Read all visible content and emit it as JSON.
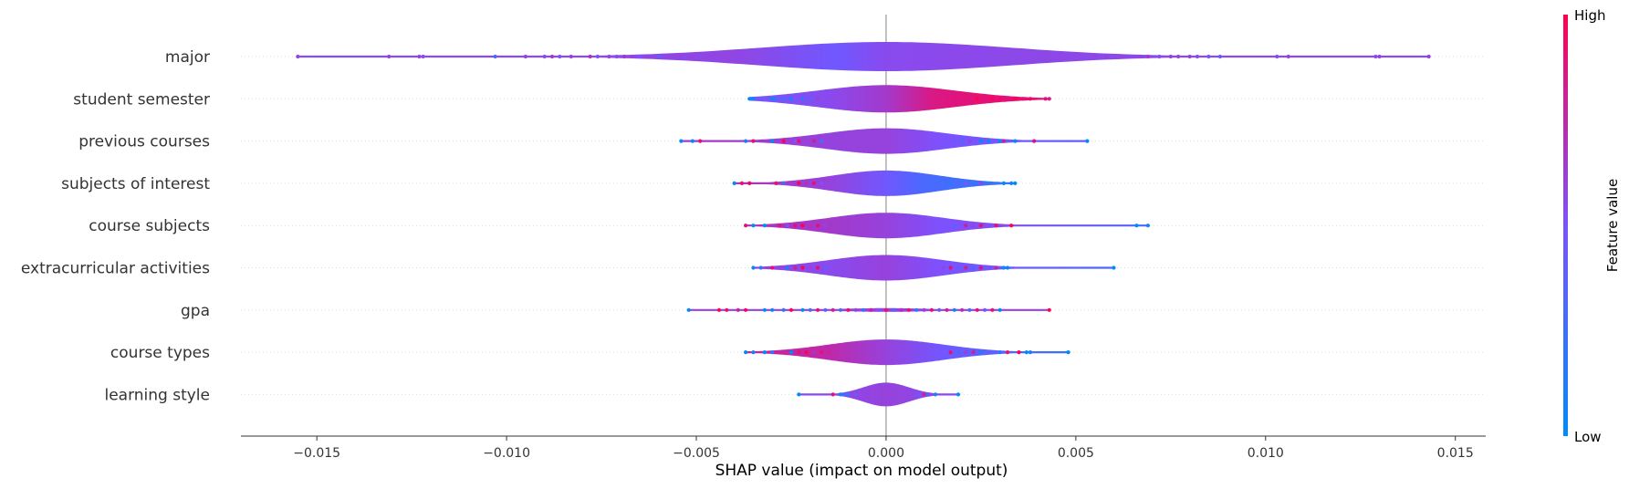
{
  "chart_data": {
    "type": "violin",
    "xlabel": "SHAP value (impact on model output)",
    "xlim": [
      -0.017,
      0.0158
    ],
    "xticks": [
      -0.015,
      -0.01,
      -0.005,
      0.0,
      0.005,
      0.01,
      0.015
    ],
    "xtick_labels": [
      "−0.015",
      "−0.010",
      "−0.005",
      "0.000",
      "0.005",
      "0.010",
      "0.015"
    ],
    "colorbar": {
      "title": "Feature value",
      "high_label": "High",
      "low_label": "Low",
      "high_color": "#ff0052",
      "low_color": "#008bfb"
    },
    "features": [
      {
        "name": "major",
        "range": [
          -0.0155,
          0.0143
        ],
        "spread": 0.0033,
        "maxwidth": 16,
        "color_mix": [
          [
            -0.016,
            0.52
          ],
          [
            -0.004,
            0.58
          ],
          [
            -0.0013,
            0.45
          ],
          [
            0.0,
            0.55
          ],
          [
            0.004,
            0.57
          ],
          [
            0.016,
            0.55
          ]
        ],
        "points": [
          [
            -0.0155,
            0.6
          ],
          [
            -0.0131,
            0.6
          ],
          [
            -0.0123,
            0.6
          ],
          [
            -0.0122,
            0.55
          ],
          [
            -0.0103,
            0.3
          ],
          [
            -0.0095,
            0.6
          ],
          [
            -0.009,
            0.55
          ],
          [
            -0.0088,
            0.65
          ],
          [
            -0.0086,
            0.5
          ],
          [
            -0.0083,
            0.6
          ],
          [
            -0.0078,
            0.7
          ],
          [
            -0.0076,
            0.5
          ],
          [
            -0.0073,
            0.6
          ],
          [
            -0.0071,
            0.55
          ],
          [
            -0.0069,
            0.65
          ],
          [
            -0.0067,
            0.6
          ],
          [
            -0.0065,
            0.5
          ],
          [
            -0.0063,
            0.6
          ],
          [
            -0.006,
            0.4
          ],
          [
            -0.0059,
            0.55
          ],
          [
            -0.0057,
            0.6
          ],
          [
            -0.0055,
            0.6
          ],
          [
            -0.0053,
            0.55
          ],
          [
            -0.0051,
            0.6
          ],
          [
            -0.0049,
            0.55
          ],
          [
            -0.0047,
            0.6
          ],
          [
            0.0053,
            0.55
          ],
          [
            0.0055,
            0.6
          ],
          [
            0.0058,
            0.6
          ],
          [
            0.006,
            0.55
          ],
          [
            0.0062,
            0.6
          ],
          [
            0.0067,
            0.6
          ],
          [
            0.0069,
            0.65
          ],
          [
            0.0072,
            0.55
          ],
          [
            0.0075,
            0.6
          ],
          [
            0.0077,
            0.6
          ],
          [
            0.008,
            0.6
          ],
          [
            0.0082,
            0.55
          ],
          [
            0.0085,
            0.45
          ],
          [
            0.0088,
            0.4
          ],
          [
            0.0103,
            0.55
          ],
          [
            0.0106,
            0.6
          ],
          [
            0.0129,
            0.55
          ],
          [
            0.013,
            0.6
          ],
          [
            0.0143,
            0.6
          ]
        ]
      },
      {
        "name": "student semester",
        "range": [
          -0.0036,
          0.0043
        ],
        "spread": 0.0018,
        "maxwidth": 15,
        "color_mix": [
          [
            -0.004,
            0.45
          ],
          [
            -0.0015,
            0.55
          ],
          [
            0.0,
            0.65
          ],
          [
            0.0012,
            0.85
          ],
          [
            0.0025,
            0.9
          ],
          [
            0.0045,
            0.9
          ]
        ],
        "points": [
          [
            -0.0036,
            0.0
          ],
          [
            -0.0035,
            0.1
          ],
          [
            -0.003,
            0.1
          ],
          [
            -0.0029,
            0.2
          ],
          [
            -0.0027,
            0.3
          ],
          [
            -0.0025,
            0.1
          ],
          [
            -0.0024,
            0.5
          ],
          [
            -0.0022,
            0.2
          ],
          [
            -0.002,
            0.4
          ],
          [
            -0.0018,
            0.6
          ],
          [
            0.0022,
            0.9
          ],
          [
            0.0024,
            1.0
          ],
          [
            0.0026,
            0.9
          ],
          [
            0.0028,
            1.0
          ],
          [
            0.003,
            0.95
          ],
          [
            0.0032,
            0.9
          ],
          [
            0.0034,
            1.0
          ],
          [
            0.0036,
            0.9
          ],
          [
            0.0038,
            0.95
          ],
          [
            0.0042,
            0.9
          ],
          [
            0.0043,
            0.85
          ]
        ]
      },
      {
        "name": "previous courses",
        "range": [
          -0.0054,
          0.0053
        ],
        "spread": 0.0016,
        "maxwidth": 14,
        "color_mix": [
          [
            -0.004,
            0.65
          ],
          [
            -0.0015,
            0.6
          ],
          [
            0.0,
            0.6
          ],
          [
            0.0015,
            0.5
          ],
          [
            0.003,
            0.45
          ],
          [
            0.006,
            0.4
          ]
        ],
        "points": [
          [
            -0.0054,
            0.0
          ],
          [
            -0.0051,
            0.0
          ],
          [
            -0.0049,
            0.9
          ],
          [
            -0.0037,
            0.1
          ],
          [
            -0.0035,
            0.9
          ],
          [
            -0.003,
            0.0
          ],
          [
            -0.0027,
            1.0
          ],
          [
            -0.0024,
            0.5
          ],
          [
            -0.0023,
            0.9
          ],
          [
            -0.0021,
            0.6
          ],
          [
            -0.0019,
            0.8
          ],
          [
            -0.0017,
            0.3
          ],
          [
            0.0016,
            0.5
          ],
          [
            0.0018,
            0.4
          ],
          [
            0.002,
            0.3
          ],
          [
            0.0022,
            0.6
          ],
          [
            0.0024,
            0.5
          ],
          [
            0.0025,
            0.0
          ],
          [
            0.0027,
            0.1
          ],
          [
            0.003,
            0.0
          ],
          [
            0.0031,
            0.8
          ],
          [
            0.0034,
            0.0
          ],
          [
            0.0039,
            0.9
          ],
          [
            0.0053,
            0.0
          ]
        ]
      },
      {
        "name": "subjects of interest",
        "range": [
          -0.004,
          0.0034
        ],
        "spread": 0.0014,
        "maxwidth": 14,
        "color_mix": [
          [
            -0.004,
            0.7
          ],
          [
            -0.0015,
            0.6
          ],
          [
            0.0,
            0.45
          ],
          [
            0.001,
            0.3
          ],
          [
            0.002,
            0.25
          ],
          [
            0.004,
            0.2
          ]
        ],
        "points": [
          [
            -0.004,
            0.0
          ],
          [
            -0.0038,
            0.9
          ],
          [
            -0.0036,
            1.0
          ],
          [
            -0.0029,
            0.9
          ],
          [
            -0.0027,
            0.3
          ],
          [
            -0.0023,
            1.0
          ],
          [
            -0.0021,
            0.7
          ],
          [
            -0.0019,
            0.9
          ],
          [
            -0.0017,
            0.5
          ],
          [
            -0.0015,
            0.6
          ],
          [
            0.0015,
            0.3
          ],
          [
            0.0017,
            0.2
          ],
          [
            0.0019,
            0.4
          ],
          [
            0.0021,
            0.5
          ],
          [
            0.0023,
            0.3
          ],
          [
            0.0025,
            0.6
          ],
          [
            0.0031,
            0.0
          ],
          [
            0.0033,
            0.1
          ],
          [
            0.0034,
            0.0
          ]
        ]
      },
      {
        "name": "course subjects",
        "range": [
          -0.0037,
          0.0069
        ],
        "spread": 0.0015,
        "maxwidth": 14,
        "color_mix": [
          [
            -0.004,
            0.7
          ],
          [
            -0.0015,
            0.65
          ],
          [
            0.0,
            0.6
          ],
          [
            0.0015,
            0.5
          ],
          [
            0.003,
            0.55
          ],
          [
            0.007,
            0.3
          ]
        ],
        "points": [
          [
            -0.0037,
            0.9
          ],
          [
            -0.0035,
            0.0
          ],
          [
            -0.0032,
            0.0
          ],
          [
            -0.0028,
            0.9
          ],
          [
            -0.0026,
            0.5
          ],
          [
            -0.0024,
            0.9
          ],
          [
            -0.0022,
            1.0
          ],
          [
            -0.002,
            0.7
          ],
          [
            -0.0018,
            0.9
          ],
          [
            -0.0016,
            0.6
          ],
          [
            0.0016,
            0.5
          ],
          [
            0.0018,
            0.3
          ],
          [
            0.0021,
            0.8
          ],
          [
            0.0023,
            0.6
          ],
          [
            0.0025,
            0.9
          ],
          [
            0.0027,
            0.5
          ],
          [
            0.0029,
            0.9
          ],
          [
            0.0033,
            1.0
          ],
          [
            0.0066,
            0.0
          ],
          [
            0.0069,
            0.1
          ]
        ]
      },
      {
        "name": "extracurricular activities",
        "range": [
          -0.0035,
          0.006
        ],
        "spread": 0.0015,
        "maxwidth": 14,
        "color_mix": [
          [
            -0.004,
            0.6
          ],
          [
            -0.0015,
            0.55
          ],
          [
            0.0,
            0.6
          ],
          [
            0.0015,
            0.5
          ],
          [
            0.003,
            0.45
          ],
          [
            0.006,
            0.3
          ]
        ],
        "points": [
          [
            -0.0035,
            0.0
          ],
          [
            -0.0033,
            0.2
          ],
          [
            -0.003,
            0.9
          ],
          [
            -0.0026,
            0.1
          ],
          [
            -0.0024,
            0.8
          ],
          [
            -0.0022,
            1.0
          ],
          [
            -0.002,
            0.6
          ],
          [
            -0.0018,
            0.9
          ],
          [
            -0.0016,
            0.4
          ],
          [
            0.0015,
            0.6
          ],
          [
            0.0017,
            0.9
          ],
          [
            0.0019,
            0.4
          ],
          [
            0.0021,
            0.8
          ],
          [
            0.0023,
            0.3
          ],
          [
            0.0025,
            0.9
          ],
          [
            0.0027,
            0.5
          ],
          [
            0.0029,
            0.8
          ],
          [
            0.0031,
            0.1
          ],
          [
            0.0032,
            0.0
          ],
          [
            0.006,
            0.0
          ]
        ]
      },
      {
        "name": "gpa",
        "range": [
          -0.0052,
          0.0043
        ],
        "spread": 0.0012,
        "maxwidth": 2,
        "color_mix": [
          [
            -0.005,
            0.6
          ],
          [
            0.0,
            0.6
          ],
          [
            0.004,
            0.6
          ]
        ],
        "points": [
          [
            -0.0052,
            0.0
          ],
          [
            -0.0044,
            1.0
          ],
          [
            -0.0042,
            0.9
          ],
          [
            -0.0039,
            0.8
          ],
          [
            -0.0037,
            1.0
          ],
          [
            -0.0032,
            0.0
          ],
          [
            -0.003,
            0.1
          ],
          [
            -0.0027,
            0.2
          ],
          [
            -0.0025,
            1.0
          ],
          [
            -0.0022,
            0.0
          ],
          [
            -0.002,
            0.3
          ],
          [
            -0.0018,
            0.9
          ],
          [
            -0.0016,
            0.4
          ],
          [
            -0.0014,
            0.8
          ],
          [
            -0.0012,
            0.3
          ],
          [
            -0.001,
            0.9
          ],
          [
            -0.0008,
            0.6
          ],
          [
            -0.0006,
            0.2
          ],
          [
            -0.0004,
            0.8
          ],
          [
            -0.0002,
            0.5
          ],
          [
            0.0,
            0.9
          ],
          [
            0.0002,
            0.3
          ],
          [
            0.0004,
            0.7
          ],
          [
            0.0006,
            0.9
          ],
          [
            0.0008,
            0.2
          ],
          [
            0.001,
            0.6
          ],
          [
            0.0012,
            0.9
          ],
          [
            0.0014,
            0.4
          ],
          [
            0.0016,
            0.8
          ],
          [
            0.0018,
            0.1
          ],
          [
            0.002,
            0.7
          ],
          [
            0.0022,
            0.3
          ],
          [
            0.0024,
            0.9
          ],
          [
            0.0026,
            0.5
          ],
          [
            0.0028,
            0.9
          ],
          [
            0.003,
            0.0
          ],
          [
            0.0043,
            1.0
          ]
        ]
      },
      {
        "name": "course types",
        "range": [
          -0.0037,
          0.0048
        ],
        "spread": 0.0015,
        "maxwidth": 14,
        "color_mix": [
          [
            -0.004,
            0.8
          ],
          [
            -0.0015,
            0.75
          ],
          [
            0.0,
            0.6
          ],
          [
            0.0015,
            0.45
          ],
          [
            0.003,
            0.35
          ],
          [
            0.005,
            0.2
          ]
        ],
        "points": [
          [
            -0.0037,
            0.0
          ],
          [
            -0.0035,
            0.1
          ],
          [
            -0.0032,
            0.0
          ],
          [
            -0.003,
            0.2
          ],
          [
            -0.0025,
            0.0
          ],
          [
            -0.0023,
            0.9
          ],
          [
            -0.0021,
            1.0
          ],
          [
            -0.0019,
            0.7
          ],
          [
            -0.0017,
            0.9
          ],
          [
            -0.0015,
            0.8
          ],
          [
            0.0015,
            0.5
          ],
          [
            0.0017,
            0.9
          ],
          [
            0.0019,
            0.3
          ],
          [
            0.0021,
            0.6
          ],
          [
            0.0023,
            0.8
          ],
          [
            0.0025,
            0.1
          ],
          [
            0.0027,
            0.4
          ],
          [
            0.003,
            0.2
          ],
          [
            0.0032,
            0.9
          ],
          [
            0.0035,
            1.0
          ],
          [
            0.0037,
            0.0
          ],
          [
            0.0038,
            0.1
          ],
          [
            0.0048,
            0.0
          ]
        ]
      },
      {
        "name": "learning style",
        "range": [
          -0.0023,
          0.0019
        ],
        "spread": 0.0006,
        "maxwidth": 13,
        "color_mix": [
          [
            -0.002,
            0.55
          ],
          [
            0.0,
            0.6
          ],
          [
            0.002,
            0.55
          ]
        ],
        "points": [
          [
            -0.0023,
            0.0
          ],
          [
            -0.0014,
            0.9
          ],
          [
            -0.0012,
            0.1
          ],
          [
            -0.0011,
            0.3
          ],
          [
            -0.001,
            0.2
          ],
          [
            -0.0009,
            0.6
          ],
          [
            -0.0008,
            0.4
          ],
          [
            0.0008,
            0.4
          ],
          [
            0.0009,
            0.5
          ],
          [
            0.001,
            0.8
          ],
          [
            0.0011,
            0.3
          ],
          [
            0.0013,
            0.1
          ],
          [
            0.0019,
            0.0
          ]
        ]
      }
    ]
  }
}
